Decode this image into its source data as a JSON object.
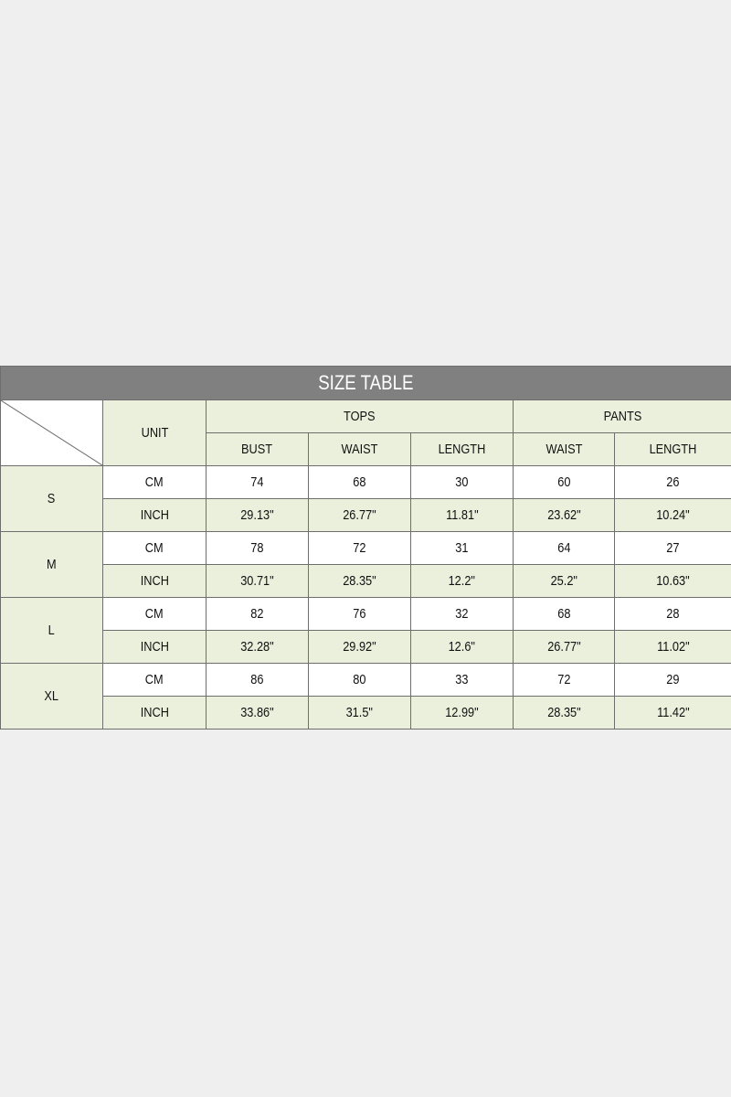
{
  "title": "SIZE TABLE",
  "header": {
    "unit": "UNIT",
    "groups": [
      "TOPS",
      "PANTS"
    ],
    "columns": [
      "BUST",
      "WAIST",
      "LENGTH",
      "WAIST",
      "LENGTH"
    ]
  },
  "colors": {
    "title_bg": "#808080",
    "header_bg": "#ebf0dc",
    "page_bg": "#efefef"
  },
  "rows": [
    {
      "size": "S",
      "cm": {
        "unit": "CM",
        "values": [
          "74",
          "68",
          "30",
          "60",
          "26"
        ]
      },
      "inch": {
        "unit": "INCH",
        "values": [
          "29.13\"",
          "26.77\"",
          "11.81\"",
          "23.62\"",
          "10.24\""
        ]
      }
    },
    {
      "size": "M",
      "cm": {
        "unit": "CM",
        "values": [
          "78",
          "72",
          "31",
          "64",
          "27"
        ]
      },
      "inch": {
        "unit": "INCH",
        "values": [
          "30.71\"",
          "28.35\"",
          "12.2\"",
          "25.2\"",
          "10.63\""
        ]
      }
    },
    {
      "size": "L",
      "cm": {
        "unit": "CM",
        "values": [
          "82",
          "76",
          "32",
          "68",
          "28"
        ]
      },
      "inch": {
        "unit": "INCH",
        "values": [
          "32.28\"",
          "29.92\"",
          "12.6\"",
          "26.77\"",
          "11.02\""
        ]
      }
    },
    {
      "size": "XL",
      "cm": {
        "unit": "CM",
        "values": [
          "86",
          "80",
          "33",
          "72",
          "29"
        ]
      },
      "inch": {
        "unit": "INCH",
        "values": [
          "33.86\"",
          "31.5\"",
          "12.99\"",
          "28.35\"",
          "11.42\""
        ]
      }
    }
  ]
}
